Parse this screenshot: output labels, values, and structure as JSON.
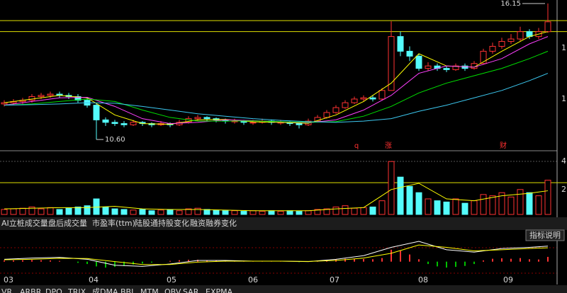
{
  "chart_data": {
    "type": "candlestick",
    "ylim": [
      10.17,
      16.29
    ],
    "candles": [
      [
        12.05,
        12.2,
        11.95,
        12.1
      ],
      [
        12.1,
        12.25,
        12.0,
        12.15
      ],
      [
        12.15,
        12.3,
        12.05,
        12.2
      ],
      [
        12.2,
        12.45,
        12.1,
        12.35
      ],
      [
        12.35,
        12.5,
        12.25,
        12.4
      ],
      [
        12.4,
        12.55,
        12.3,
        12.45
      ],
      [
        12.45,
        12.55,
        12.3,
        12.4
      ],
      [
        12.4,
        12.5,
        12.25,
        12.35
      ],
      [
        12.35,
        12.45,
        12.1,
        12.2
      ],
      [
        12.2,
        12.3,
        11.9,
        12.0
      ],
      [
        12.0,
        12.05,
        10.6,
        11.4
      ],
      [
        11.4,
        11.5,
        11.15,
        11.3
      ],
      [
        11.3,
        11.4,
        11.15,
        11.25
      ],
      [
        11.25,
        11.35,
        11.1,
        11.2
      ],
      [
        11.2,
        11.4,
        11.15,
        11.3
      ],
      [
        11.3,
        11.35,
        11.15,
        11.25
      ],
      [
        11.25,
        11.3,
        11.1,
        11.2
      ],
      [
        11.2,
        11.35,
        11.15,
        11.25
      ],
      [
        11.25,
        11.3,
        11.1,
        11.2
      ],
      [
        11.2,
        11.4,
        11.15,
        11.3
      ],
      [
        11.3,
        11.55,
        11.25,
        11.45
      ],
      [
        11.45,
        11.6,
        11.35,
        11.5
      ],
      [
        11.5,
        11.55,
        11.35,
        11.45
      ],
      [
        11.45,
        11.5,
        11.3,
        11.4
      ],
      [
        11.4,
        11.45,
        11.25,
        11.35
      ],
      [
        11.35,
        11.45,
        11.25,
        11.35
      ],
      [
        11.35,
        11.4,
        11.2,
        11.3
      ],
      [
        11.3,
        11.4,
        11.2,
        11.3
      ],
      [
        11.3,
        11.45,
        11.25,
        11.35
      ],
      [
        11.35,
        11.4,
        11.2,
        11.3
      ],
      [
        11.3,
        11.4,
        11.2,
        11.3
      ],
      [
        11.3,
        11.35,
        11.15,
        11.25
      ],
      [
        11.25,
        11.3,
        11.05,
        11.2
      ],
      [
        11.2,
        11.45,
        11.15,
        11.35
      ],
      [
        11.35,
        11.6,
        11.3,
        11.5
      ],
      [
        11.5,
        11.8,
        11.45,
        11.7
      ],
      [
        11.7,
        12.0,
        11.65,
        11.9
      ],
      [
        11.9,
        12.2,
        11.85,
        12.1
      ],
      [
        12.1,
        12.35,
        12.05,
        12.25
      ],
      [
        12.25,
        12.4,
        12.15,
        12.3
      ],
      [
        12.3,
        12.4,
        12.15,
        12.25
      ],
      [
        12.25,
        12.7,
        12.2,
        12.6
      ],
      [
        12.6,
        15.42,
        12.6,
        14.8
      ],
      [
        14.8,
        15.0,
        14.0,
        14.2
      ],
      [
        14.2,
        14.4,
        13.8,
        14.0
      ],
      [
        14.0,
        14.1,
        13.4,
        13.5
      ],
      [
        13.5,
        13.75,
        13.4,
        13.6
      ],
      [
        13.6,
        13.7,
        13.4,
        13.5
      ],
      [
        13.5,
        13.6,
        13.35,
        13.45
      ],
      [
        13.45,
        13.7,
        13.4,
        13.6
      ],
      [
        13.6,
        13.7,
        13.4,
        13.5
      ],
      [
        13.5,
        13.8,
        13.45,
        13.7
      ],
      [
        13.7,
        14.3,
        13.65,
        14.2
      ],
      [
        14.2,
        14.55,
        14.1,
        14.4
      ],
      [
        14.4,
        14.75,
        14.3,
        14.6
      ],
      [
        14.6,
        14.9,
        14.5,
        14.7
      ],
      [
        14.7,
        15.2,
        14.6,
        15.0
      ],
      [
        15.0,
        15.1,
        14.7,
        14.8
      ],
      [
        14.8,
        15.15,
        14.7,
        15.0
      ],
      [
        15.0,
        16.15,
        14.95,
        15.4
      ]
    ],
    "ma_x": [
      0,
      3,
      6,
      9,
      12,
      15,
      18,
      21,
      24,
      27,
      30,
      33,
      36,
      39,
      42,
      45,
      48,
      51,
      54,
      57,
      59
    ],
    "ma_lines": [
      {
        "color": "#ffff00",
        "values": [
          12.1,
          12.25,
          12.4,
          12.3,
          11.6,
          11.25,
          11.22,
          11.4,
          11.42,
          11.32,
          11.3,
          11.26,
          11.6,
          12.15,
          12.9,
          14.1,
          13.6,
          13.55,
          14.2,
          14.8,
          15.0
        ]
      },
      {
        "color": "#ff40ff",
        "values": [
          12.0,
          12.15,
          12.3,
          12.32,
          11.95,
          11.45,
          11.25,
          11.3,
          11.4,
          11.37,
          11.32,
          11.28,
          11.4,
          11.8,
          12.4,
          13.3,
          13.6,
          13.55,
          13.9,
          14.5,
          14.8
        ]
      },
      {
        "color": "#00e000",
        "values": [
          12.0,
          12.05,
          12.15,
          12.25,
          12.15,
          11.8,
          11.5,
          11.35,
          11.35,
          11.36,
          11.33,
          11.3,
          11.33,
          11.55,
          11.95,
          12.5,
          12.9,
          13.2,
          13.5,
          13.9,
          14.2
        ]
      },
      {
        "color": "#3cc8f0",
        "values": [
          12.0,
          12.02,
          12.05,
          12.1,
          12.08,
          11.95,
          11.8,
          11.65,
          11.55,
          11.45,
          11.38,
          11.33,
          11.3,
          11.35,
          11.45,
          11.75,
          12.0,
          12.3,
          12.6,
          13.0,
          13.3
        ]
      }
    ],
    "price_lines": [
      15.45,
      15.0
    ],
    "high_label": "16.15",
    "low_label": "10.60",
    "annotations": [
      "q",
      "涨",
      "财"
    ],
    "right_labels": [
      "1",
      "1"
    ],
    "volume": {
      "ylim": [
        0,
        100
      ],
      "values": [
        8,
        9,
        10,
        12,
        9,
        11,
        8,
        10,
        12,
        14,
        25,
        12,
        9,
        8,
        7,
        8,
        6,
        7,
        8,
        6,
        9,
        10,
        8,
        7,
        6,
        6,
        5,
        6,
        5,
        6,
        5,
        6,
        5,
        6,
        8,
        9,
        12,
        14,
        10,
        11,
        12,
        22,
        85,
        60,
        45,
        35,
        25,
        22,
        20,
        25,
        18,
        22,
        32,
        30,
        35,
        28,
        40,
        35,
        30,
        55
      ],
      "ma": {
        "color": "#ffff00",
        "values": [
          9,
          10,
          11,
          11,
          13,
          9,
          8,
          8,
          7,
          6,
          6,
          6,
          9,
          11,
          40,
          50,
          25,
          22,
          30,
          34,
          38
        ]
      },
      "line": 51,
      "right_labels": [
        "4",
        "2"
      ]
    },
    "macd": {
      "ylim": [
        -0.9,
        1.0
      ],
      "hist": [
        0.05,
        0.05,
        0.06,
        0.07,
        0.06,
        0.05,
        0.03,
        0.0,
        -0.05,
        -0.1,
        -0.2,
        -0.25,
        -0.22,
        -0.18,
        -0.12,
        -0.08,
        -0.04,
        0.0,
        0.03,
        0.06,
        0.08,
        0.08,
        0.06,
        0.05,
        0.04,
        0.03,
        0.03,
        0.02,
        0.02,
        0.02,
        0.01,
        0.0,
        -0.02,
        0.01,
        0.04,
        0.07,
        0.1,
        0.12,
        0.12,
        0.11,
        0.1,
        0.15,
        0.5,
        0.45,
        0.3,
        0.1,
        -0.1,
        -0.2,
        -0.25,
        -0.22,
        -0.18,
        -0.1,
        0.05,
        0.12,
        0.14,
        0.12,
        0.15,
        0.1,
        0.09,
        0.2
      ],
      "lines": [
        {
          "color": "#ffffff",
          "values": [
            0.1,
            0.15,
            0.18,
            0.1,
            -0.15,
            -0.2,
            -0.1,
            0.05,
            0.05,
            0.02,
            0.02,
            0.0,
            0.1,
            0.25,
            0.6,
            0.85,
            0.5,
            0.4,
            0.55,
            0.6,
            0.65
          ]
        },
        {
          "color": "#ffff00",
          "values": [
            0.08,
            0.1,
            0.14,
            0.13,
            0.0,
            -0.12,
            -0.12,
            -0.02,
            0.02,
            0.02,
            0.02,
            0.01,
            0.05,
            0.15,
            0.35,
            0.7,
            0.6,
            0.45,
            0.5,
            0.55,
            0.58
          ]
        }
      ]
    },
    "months": [
      "03",
      "04",
      "05",
      "06",
      "07",
      "08",
      "09"
    ]
  },
  "tabs": [
    "AI立桩成交量",
    "盘后成交量",
    "市盈率(ttm)",
    "陆股通持股变化",
    "融资融券变化"
  ],
  "button": "指标说明",
  "bottom_tabs": [
    "VR",
    "ARBR",
    "DPO",
    "TRIX",
    "成DMA",
    "BBI",
    "MTM",
    "OBV",
    "SAR",
    "EXPMA"
  ]
}
